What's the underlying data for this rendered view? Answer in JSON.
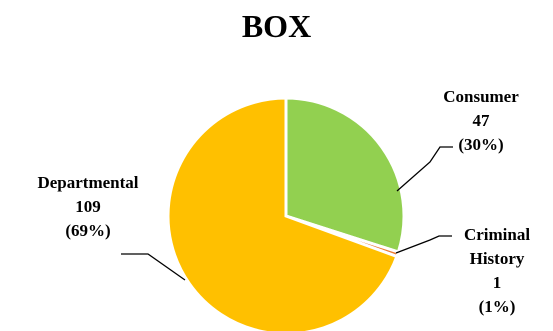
{
  "chart_data": {
    "type": "pie",
    "title": "BOX",
    "slices": [
      {
        "label": [
          "Consumer"
        ],
        "value": 47,
        "value_label": "47",
        "percent_label": "(30%)",
        "color": "#92D050"
      },
      {
        "label": [
          "Criminal",
          "History"
        ],
        "value": 1,
        "value_label": "1",
        "percent_label": "(1%)",
        "color": "#ED7D31"
      },
      {
        "label": [
          "Departmental"
        ],
        "value": 109,
        "value_label": "109",
        "percent_label": "(69%)",
        "color": "#FFC000"
      }
    ],
    "start_angle_deg": 0,
    "direction": "clockwise",
    "legend": "none",
    "slice_border_color": "#ffffff"
  }
}
